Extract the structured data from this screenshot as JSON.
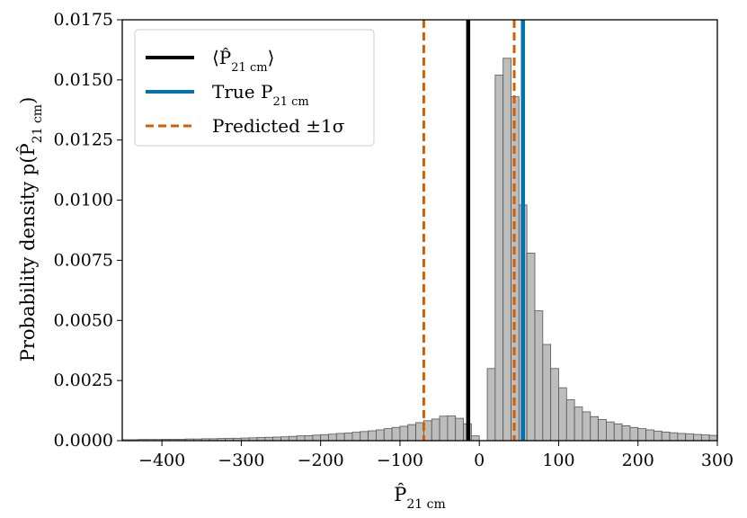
{
  "chart_data": {
    "type": "bar",
    "title": "",
    "xlabel": "P̂",
    "xlabel_sub": "21 cm",
    "ylabel": "Probability density p(P̂",
    "ylabel_sub": "21 cm",
    "ylabel_close": ")",
    "xlim": [
      -450,
      300
    ],
    "ylim": [
      0,
      0.0175
    ],
    "xticks": [
      -400,
      -300,
      -200,
      -100,
      0,
      100,
      200,
      300
    ],
    "xtick_labels": [
      "−400",
      "−300",
      "−200",
      "−100",
      "0",
      "100",
      "200",
      "300"
    ],
    "yticks": [
      0,
      0.0025,
      0.005,
      0.0075,
      0.01,
      0.0125,
      0.015,
      0.0175
    ],
    "ytick_labels": [
      "0.0000",
      "0.0025",
      "0.0050",
      "0.0075",
      "0.0100",
      "0.0125",
      "0.0150",
      "0.0175"
    ],
    "histogram": {
      "bin_width": 10,
      "bin_starts": [
        -450,
        -440,
        -430,
        -420,
        -410,
        -400,
        -390,
        -380,
        -370,
        -360,
        -350,
        -340,
        -330,
        -320,
        -310,
        -300,
        -290,
        -280,
        -270,
        -260,
        -250,
        -240,
        -230,
        -220,
        -210,
        -200,
        -190,
        -180,
        -170,
        -160,
        -150,
        -140,
        -130,
        -120,
        -110,
        -100,
        -90,
        -80,
        -70,
        -60,
        -50,
        -40,
        -30,
        -20,
        -10,
        0,
        10,
        20,
        30,
        40,
        50,
        60,
        70,
        80,
        90,
        100,
        110,
        120,
        130,
        140,
        150,
        160,
        170,
        180,
        190,
        200,
        210,
        220,
        230,
        240,
        250,
        260,
        270,
        280,
        290
      ],
      "values": [
        4e-05,
        4e-05,
        5e-05,
        5e-05,
        5e-05,
        6e-05,
        6e-05,
        6e-05,
        7e-05,
        7e-05,
        8e-05,
        8e-05,
        9e-05,
        0.0001,
        0.0001,
        0.00011,
        0.00012,
        0.00013,
        0.00014,
        0.00015,
        0.00016,
        0.00018,
        0.0002,
        0.00021,
        0.00023,
        0.00025,
        0.00027,
        0.0003,
        0.00032,
        0.00035,
        0.00038,
        0.00041,
        0.00045,
        0.0005,
        0.00055,
        0.0006,
        0.00067,
        0.00075,
        0.00083,
        0.0009,
        0.00102,
        0.00103,
        0.00093,
        0.0007,
        0.0002,
        0,
        0.003,
        0.0152,
        0.0159,
        0.0143,
        0.0098,
        0.0078,
        0.0054,
        0.004,
        0.003,
        0.0022,
        0.0017,
        0.0014,
        0.0012,
        0.001,
        0.00088,
        0.00078,
        0.0007,
        0.00062,
        0.00055,
        0.0005,
        0.00045,
        0.0004,
        0.00036,
        0.00033,
        0.0003,
        0.00028,
        0.00026,
        0.00024,
        0.00022
      ]
    },
    "vlines": [
      {
        "name": "mean",
        "x": -14,
        "color": "#000000",
        "style": "solid"
      },
      {
        "name": "true",
        "x": 55,
        "color": "#0072b2",
        "style": "solid"
      },
      {
        "name": "pred-low",
        "x": -70,
        "color": "#d55e00",
        "style": "dashed"
      },
      {
        "name": "pred-high",
        "x": 44,
        "color": "#d55e00",
        "style": "dashed"
      }
    ],
    "legend": {
      "position": "top-left",
      "entries": [
        {
          "label_left": "⟨P̂",
          "label_sub": "21 cm",
          "label_right": "⟩",
          "color": "#000000",
          "style": "solid"
        },
        {
          "label_left": "True P",
          "label_sub": "21 cm",
          "label_right": "",
          "color": "#0072b2",
          "style": "solid"
        },
        {
          "label_left": "Predicted ±1σ",
          "label_sub": "",
          "label_right": "",
          "color": "#d55e00",
          "style": "dashed"
        }
      ]
    },
    "colors": {
      "bar_fill": "#bdbdbd",
      "bar_edge": "#555555"
    }
  }
}
